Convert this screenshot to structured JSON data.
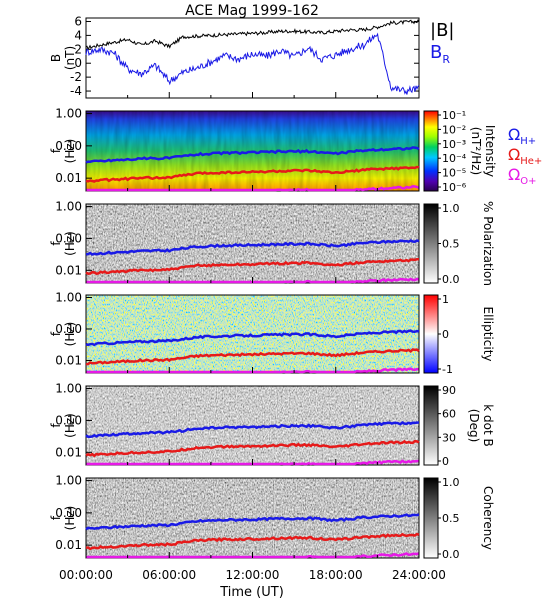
{
  "figure": {
    "title": "ACE Mag 1999-162",
    "xlabel": "Time (UT)",
    "xticks": [
      "00:00:00",
      "06:00:00",
      "12:00:00",
      "18:00:00",
      "24:00:00"
    ],
    "legend_b": {
      "b": "|B|",
      "br": "B",
      "br_sub": "R",
      "b_color": "#000000",
      "br_color": "#1a1ae6"
    },
    "legend_cyclotron": [
      {
        "text": "Ω",
        "sub": "H+",
        "color": "#1a1ae6"
      },
      {
        "text": "Ω",
        "sub": "He+",
        "color": "#e61a1a"
      },
      {
        "text": "Ω",
        "sub": "O+",
        "color": "#e619e6"
      }
    ]
  },
  "chart_data": [
    {
      "type": "line",
      "ylabel": "B",
      "ylabel_unit": "(nT)",
      "ylim": [
        -5,
        6.5
      ],
      "yticks": [
        "6",
        "4",
        "2",
        "0",
        "-2",
        "-4"
      ],
      "xlim_hours": [
        0,
        24
      ],
      "series": [
        {
          "name": "|B|",
          "color": "#000000",
          "x": [
            0,
            1,
            2,
            3,
            4,
            5,
            6,
            7,
            8,
            9,
            10,
            11,
            12,
            13,
            14,
            15,
            16,
            17,
            18,
            19,
            20,
            21,
            22,
            23,
            24
          ],
          "y": [
            2.2,
            2.6,
            3.0,
            3.4,
            2.6,
            3.2,
            2.4,
            3.8,
            3.9,
            4.0,
            4.1,
            4.2,
            4.3,
            4.4,
            4.6,
            4.6,
            4.5,
            4.4,
            4.6,
            4.8,
            4.8,
            5.2,
            5.8,
            5.9,
            6.0
          ]
        },
        {
          "name": "B_R",
          "color": "#1a1ae6",
          "x": [
            0,
            1,
            2,
            3,
            4,
            5,
            6,
            7,
            8,
            9,
            10,
            11,
            12,
            13,
            14,
            15,
            16,
            17,
            18,
            19,
            20,
            21,
            22,
            23,
            24
          ],
          "y": [
            1.6,
            2.0,
            1.5,
            -0.8,
            -1.5,
            -0.3,
            -2.6,
            -1.3,
            -0.7,
            0.2,
            1.1,
            0.6,
            1.3,
            1.0,
            1.8,
            0.9,
            2.2,
            0.6,
            1.2,
            2.0,
            2.6,
            4.2,
            -3.5,
            -4.0,
            -3.6
          ]
        }
      ]
    },
    {
      "type": "heatmap",
      "ylabel": "f",
      "ylabel_unit": "(Hz)",
      "yticks": [
        "1.00",
        "0.10",
        "0.01"
      ],
      "colorbar": {
        "label": "Intensity",
        "unit": "(nT²/Hz)",
        "ticks": [
          "10⁻¹",
          "10⁻²",
          "10⁻³",
          "10⁻⁴",
          "10⁻⁵",
          "10⁻⁶"
        ],
        "scale": "rainbow"
      }
    },
    {
      "type": "heatmap",
      "ylabel": "f",
      "ylabel_unit": "(Hz)",
      "yticks": [
        "1.00",
        "0.10",
        "0.01"
      ],
      "colorbar": {
        "label": "% Polarization",
        "ticks": [
          "1.0",
          "0.5",
          "0.0"
        ],
        "scale": "gray"
      }
    },
    {
      "type": "heatmap",
      "ylabel": "f",
      "ylabel_unit": "(Hz)",
      "yticks": [
        "1.00",
        "0.10",
        "0.01"
      ],
      "colorbar": {
        "label": "Ellipticity",
        "ticks": [
          "1",
          "0",
          "-1"
        ],
        "scale": "bwr"
      }
    },
    {
      "type": "heatmap",
      "ylabel": "f",
      "ylabel_unit": "(Hz)",
      "yticks": [
        "1.00",
        "0.10",
        "0.01"
      ],
      "colorbar": {
        "label": "k dot B",
        "unit": "(Deg)",
        "ticks": [
          "90",
          "60",
          "30",
          "0"
        ],
        "scale": "gray"
      }
    },
    {
      "type": "heatmap",
      "ylabel": "f",
      "ylabel_unit": "(Hz)",
      "yticks": [
        "1.00",
        "0.10",
        "0.01"
      ],
      "colorbar": {
        "label": "Coherency",
        "ticks": [
          "1.0",
          "0.5",
          "0.0"
        ],
        "scale": "gray"
      }
    }
  ],
  "cyclotron_curves": {
    "x_hours": [
      0,
      2,
      4,
      6,
      8,
      10,
      12,
      14,
      16,
      18,
      20,
      22,
      24
    ],
    "H+": [
      0.032,
      0.036,
      0.04,
      0.042,
      0.055,
      0.06,
      0.062,
      0.066,
      0.068,
      0.058,
      0.072,
      0.08,
      0.085
    ],
    "He+": [
      0.008,
      0.009,
      0.01,
      0.0105,
      0.014,
      0.015,
      0.0155,
      0.0165,
      0.017,
      0.0145,
      0.018,
      0.02,
      0.0212
    ],
    "O+": [
      0.002,
      0.0023,
      0.0025,
      0.0026,
      0.0035,
      0.0038,
      0.0039,
      0.0041,
      0.0043,
      0.0036,
      0.0045,
      0.005,
      0.0053
    ]
  }
}
